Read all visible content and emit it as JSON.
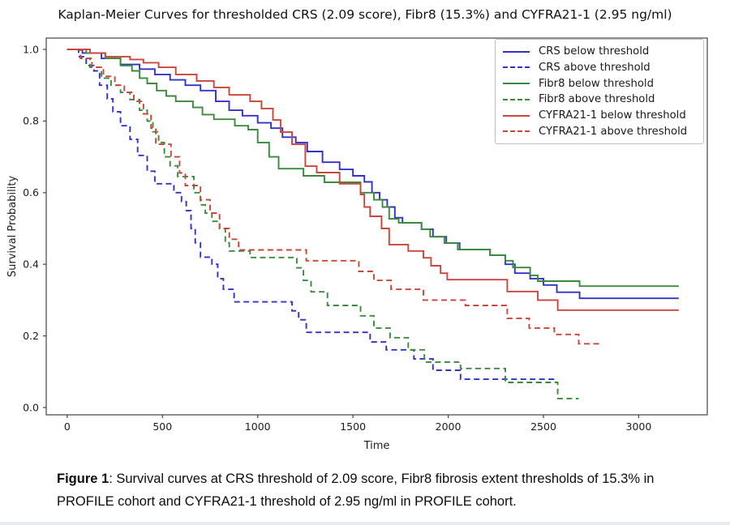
{
  "caption": {
    "label": "Figure 1",
    "text": ": Survival curves at CRS threshold of 2.09 score, Fibr8 fibrosis extent thresholds of 15.3% in PROFILE cohort and CYFRA21-1 threshold of 2.95 ng/ml in PROFILE cohort."
  },
  "chart_data": {
    "type": "line",
    "subtype": "kaplan-meier-step",
    "title": "Kaplan-Meier Curves for thresholded CRS (2.09 score), Fibr8 (15.3%) and CYFRA21-1 (2.95 ng/ml)",
    "xlabel": "Time",
    "ylabel": "Survival Probability",
    "xlim": [
      -110,
      3360
    ],
    "ylim": [
      -0.0204,
      1.0317
    ],
    "xticks": [
      0,
      500,
      1000,
      1500,
      2000,
      2500,
      3000
    ],
    "xtick_labels": [
      "0",
      "500",
      "1000",
      "1500",
      "2000",
      "2500",
      "3000"
    ],
    "yticks": [
      0.0,
      0.2,
      0.4,
      0.6,
      0.8,
      1.0
    ],
    "ytick_labels": [
      "0.0",
      "0.2",
      "0.4",
      "0.6",
      "0.8",
      "1.0"
    ],
    "grid": false,
    "legend_position": "upper right",
    "colors": {
      "blue": "#3232c8",
      "green": "#3a8a3e",
      "red": "#c8463c"
    },
    "series": [
      {
        "name": "CRS below threshold",
        "color": "blue",
        "dash": false,
        "points": [
          [
            0,
            1.0
          ],
          [
            80,
            0.99
          ],
          [
            180,
            0.975
          ],
          [
            280,
            0.958
          ],
          [
            380,
            0.945
          ],
          [
            460,
            0.93
          ],
          [
            540,
            0.915
          ],
          [
            620,
            0.9
          ],
          [
            700,
            0.885
          ],
          [
            780,
            0.855
          ],
          [
            850,
            0.83
          ],
          [
            920,
            0.815
          ],
          [
            1000,
            0.795
          ],
          [
            1070,
            0.78
          ],
          [
            1130,
            0.755
          ],
          [
            1200,
            0.74
          ],
          [
            1260,
            0.715
          ],
          [
            1340,
            0.685
          ],
          [
            1430,
            0.665
          ],
          [
            1500,
            0.647
          ],
          [
            1560,
            0.63
          ],
          [
            1600,
            0.6
          ],
          [
            1640,
            0.58
          ],
          [
            1680,
            0.56
          ],
          [
            1720,
            0.53
          ],
          [
            1760,
            0.516
          ],
          [
            1860,
            0.498
          ],
          [
            1920,
            0.477
          ],
          [
            1990,
            0.459
          ],
          [
            2060,
            0.441
          ],
          [
            2220,
            0.425
          ],
          [
            2300,
            0.4
          ],
          [
            2350,
            0.375
          ],
          [
            2430,
            0.36
          ],
          [
            2500,
            0.342
          ],
          [
            2570,
            0.322
          ],
          [
            2690,
            0.305
          ],
          [
            3210,
            0.305
          ]
        ]
      },
      {
        "name": "CRS above threshold",
        "color": "blue",
        "dash": true,
        "points": [
          [
            0,
            1.0
          ],
          [
            60,
            0.98
          ],
          [
            100,
            0.955
          ],
          [
            140,
            0.94
          ],
          [
            170,
            0.9
          ],
          [
            210,
            0.862
          ],
          [
            240,
            0.826
          ],
          [
            280,
            0.787
          ],
          [
            330,
            0.749
          ],
          [
            370,
            0.704
          ],
          [
            420,
            0.66
          ],
          [
            460,
            0.625
          ],
          [
            560,
            0.6
          ],
          [
            600,
            0.575
          ],
          [
            625,
            0.55
          ],
          [
            650,
            0.5
          ],
          [
            672,
            0.46
          ],
          [
            700,
            0.42
          ],
          [
            760,
            0.4
          ],
          [
            790,
            0.36
          ],
          [
            820,
            0.33
          ],
          [
            876,
            0.295
          ],
          [
            1180,
            0.27
          ],
          [
            1215,
            0.245
          ],
          [
            1255,
            0.21
          ],
          [
            1590,
            0.183
          ],
          [
            1675,
            0.161
          ],
          [
            1820,
            0.136
          ],
          [
            1920,
            0.104
          ],
          [
            2065,
            0.079
          ],
          [
            2565,
            0.079
          ]
        ]
      },
      {
        "name": "Fibr8 below threshold",
        "color": "green",
        "dash": false,
        "points": [
          [
            0,
            1.0
          ],
          [
            100,
            0.99
          ],
          [
            200,
            0.975
          ],
          [
            280,
            0.955
          ],
          [
            340,
            0.94
          ],
          [
            380,
            0.92
          ],
          [
            420,
            0.905
          ],
          [
            470,
            0.885
          ],
          [
            520,
            0.87
          ],
          [
            570,
            0.855
          ],
          [
            660,
            0.838
          ],
          [
            710,
            0.818
          ],
          [
            770,
            0.805
          ],
          [
            880,
            0.787
          ],
          [
            950,
            0.776
          ],
          [
            1000,
            0.74
          ],
          [
            1060,
            0.7
          ],
          [
            1110,
            0.667
          ],
          [
            1240,
            0.647
          ],
          [
            1350,
            0.629
          ],
          [
            1540,
            0.6
          ],
          [
            1610,
            0.58
          ],
          [
            1655,
            0.56
          ],
          [
            1690,
            0.527
          ],
          [
            1740,
            0.516
          ],
          [
            1860,
            0.498
          ],
          [
            1905,
            0.477
          ],
          [
            1980,
            0.459
          ],
          [
            2050,
            0.441
          ],
          [
            2220,
            0.425
          ],
          [
            2300,
            0.41
          ],
          [
            2340,
            0.391
          ],
          [
            2430,
            0.369
          ],
          [
            2470,
            0.353
          ],
          [
            2690,
            0.339
          ],
          [
            3210,
            0.339
          ]
        ]
      },
      {
        "name": "Fibr8 above threshold",
        "color": "green",
        "dash": true,
        "points": [
          [
            0,
            1.0
          ],
          [
            70,
            0.975
          ],
          [
            120,
            0.95
          ],
          [
            180,
            0.92
          ],
          [
            230,
            0.9
          ],
          [
            280,
            0.88
          ],
          [
            330,
            0.86
          ],
          [
            380,
            0.83
          ],
          [
            420,
            0.8
          ],
          [
            450,
            0.77
          ],
          [
            480,
            0.74
          ],
          [
            510,
            0.7
          ],
          [
            540,
            0.675
          ],
          [
            580,
            0.645
          ],
          [
            665,
            0.6
          ],
          [
            700,
            0.566
          ],
          [
            725,
            0.543
          ],
          [
            760,
            0.52
          ],
          [
            800,
            0.5
          ],
          [
            830,
            0.46
          ],
          [
            851,
            0.437
          ],
          [
            960,
            0.419
          ],
          [
            1205,
            0.39
          ],
          [
            1240,
            0.355
          ],
          [
            1280,
            0.323
          ],
          [
            1366,
            0.285
          ],
          [
            1540,
            0.256
          ],
          [
            1610,
            0.222
          ],
          [
            1695,
            0.195
          ],
          [
            1790,
            0.161
          ],
          [
            1875,
            0.127
          ],
          [
            2065,
            0.109
          ],
          [
            2300,
            0.07
          ],
          [
            2575,
            0.025
          ],
          [
            2685,
            0.025
          ]
        ]
      },
      {
        "name": "CYFRA21-1 below threshold",
        "color": "red",
        "dash": false,
        "points": [
          [
            0,
            1.0
          ],
          [
            120,
            0.99
          ],
          [
            200,
            0.98
          ],
          [
            330,
            0.972
          ],
          [
            400,
            0.963
          ],
          [
            480,
            0.95
          ],
          [
            570,
            0.93
          ],
          [
            680,
            0.912
          ],
          [
            770,
            0.894
          ],
          [
            850,
            0.873
          ],
          [
            960,
            0.855
          ],
          [
            1020,
            0.835
          ],
          [
            1080,
            0.803
          ],
          [
            1120,
            0.769
          ],
          [
            1180,
            0.735
          ],
          [
            1250,
            0.674
          ],
          [
            1310,
            0.656
          ],
          [
            1430,
            0.625
          ],
          [
            1540,
            0.595
          ],
          [
            1560,
            0.56
          ],
          [
            1590,
            0.534
          ],
          [
            1650,
            0.5
          ],
          [
            1690,
            0.455
          ],
          [
            1790,
            0.437
          ],
          [
            1870,
            0.418
          ],
          [
            1910,
            0.396
          ],
          [
            1960,
            0.375
          ],
          [
            1995,
            0.357
          ],
          [
            2310,
            0.324
          ],
          [
            2470,
            0.3
          ],
          [
            2575,
            0.272
          ],
          [
            3210,
            0.272
          ]
        ]
      },
      {
        "name": "CYFRA21-1 above threshold",
        "color": "red",
        "dash": true,
        "points": [
          [
            0,
            1.0
          ],
          [
            70,
            0.975
          ],
          [
            130,
            0.95
          ],
          [
            190,
            0.925
          ],
          [
            250,
            0.9
          ],
          [
            300,
            0.88
          ],
          [
            350,
            0.855
          ],
          [
            400,
            0.82
          ],
          [
            440,
            0.78
          ],
          [
            465,
            0.735
          ],
          [
            545,
            0.7
          ],
          [
            590,
            0.655
          ],
          [
            620,
            0.62
          ],
          [
            700,
            0.58
          ],
          [
            750,
            0.543
          ],
          [
            800,
            0.5
          ],
          [
            851,
            0.47
          ],
          [
            900,
            0.44
          ],
          [
            1255,
            0.41
          ],
          [
            1531,
            0.38
          ],
          [
            1610,
            0.355
          ],
          [
            1700,
            0.33
          ],
          [
            1870,
            0.3
          ],
          [
            2090,
            0.285
          ],
          [
            2310,
            0.249
          ],
          [
            2425,
            0.222
          ],
          [
            2557,
            0.204
          ],
          [
            2685,
            0.178
          ],
          [
            2810,
            0.178
          ]
        ]
      }
    ]
  }
}
